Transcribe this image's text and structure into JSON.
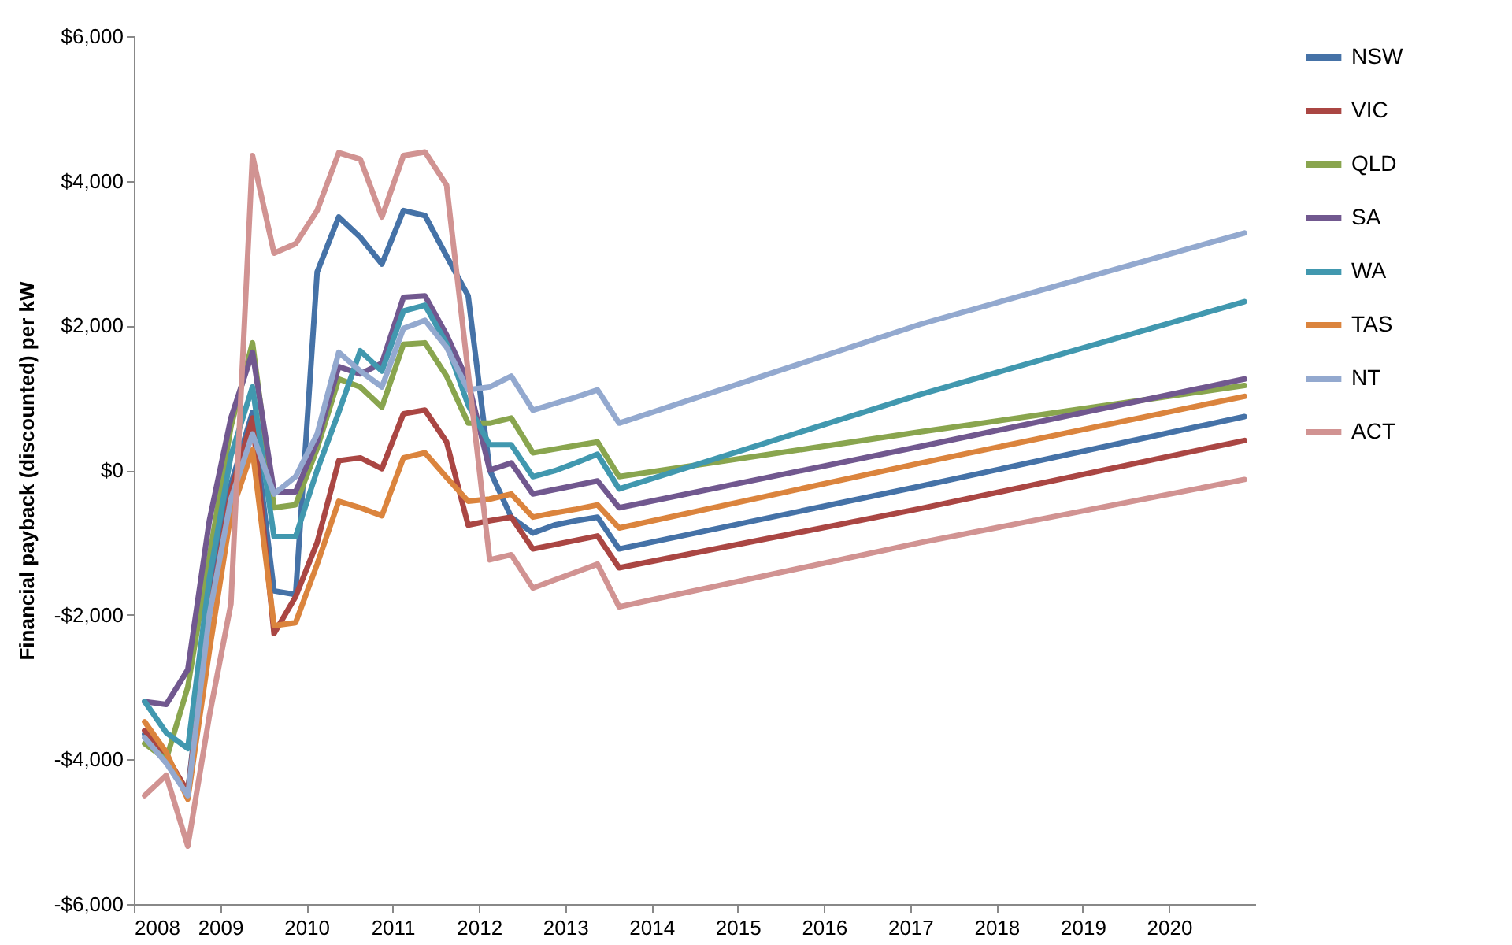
{
  "chart_data": {
    "type": "line",
    "ylabel": "Financial payback (discounted) per kW",
    "x": [
      2008.125,
      2008.375,
      2008.625,
      2008.875,
      2009.125,
      2009.375,
      2009.625,
      2009.875,
      2010.125,
      2010.375,
      2010.625,
      2010.875,
      2011.125,
      2011.375,
      2011.625,
      2011.875,
      2012.125,
      2012.375,
      2012.625,
      2012.875,
      2013.125,
      2013.375,
      2013.625,
      2017.125,
      2020.875
    ],
    "series": [
      {
        "name": "NSW",
        "color": "#4572a7",
        "values": [
          -3650,
          -4000,
          -4450,
          -1800,
          -200,
          800,
          -1670,
          -1720,
          2740,
          3500,
          3220,
          2850,
          3590,
          3520,
          2960,
          2410,
          0,
          -650,
          -870,
          -760,
          -700,
          -650,
          -1090,
          -220,
          740
        ]
      },
      {
        "name": "VIC",
        "color": "#aa4643",
        "values": [
          -3600,
          -3950,
          -4450,
          -2000,
          -300,
          720,
          -2260,
          -1750,
          -1000,
          130,
          170,
          20,
          780,
          830,
          390,
          -760,
          -700,
          -650,
          -1090,
          -1030,
          -970,
          -910,
          -1350,
          -530,
          410
        ]
      },
      {
        "name": "QLD",
        "color": "#89a54e",
        "values": [
          -3780,
          -4000,
          -3000,
          -1200,
          600,
          1760,
          -520,
          -480,
          300,
          1260,
          1150,
          870,
          1740,
          1760,
          1300,
          650,
          650,
          720,
          240,
          290,
          340,
          390,
          -90,
          530,
          1170
        ]
      },
      {
        "name": "SA",
        "color": "#71588f",
        "values": [
          -3200,
          -3240,
          -2760,
          -700,
          720,
          1630,
          -300,
          -300,
          400,
          1430,
          1330,
          1480,
          2390,
          2410,
          1870,
          1220,
          0,
          100,
          -330,
          -270,
          -210,
          -150,
          -520,
          330,
          1260
        ]
      },
      {
        "name": "WA",
        "color": "#4198af",
        "values": [
          -3200,
          -3630,
          -3850,
          -1500,
          200,
          1150,
          -920,
          -920,
          0,
          800,
          1650,
          1370,
          2200,
          2280,
          1750,
          900,
          350,
          350,
          -90,
          -10,
          100,
          220,
          -260,
          1050,
          2330
        ]
      },
      {
        "name": "TAS",
        "color": "#db843d",
        "values": [
          -3480,
          -3900,
          -4550,
          -2500,
          -600,
          280,
          -2150,
          -2110,
          -1300,
          -430,
          -520,
          -630,
          170,
          240,
          -100,
          -430,
          -400,
          -330,
          -650,
          -590,
          -540,
          -480,
          -800,
          100,
          1020
        ]
      },
      {
        "name": "NT",
        "color": "#93a9cf",
        "values": [
          -3700,
          -4050,
          -4500,
          -2000,
          -400,
          500,
          -330,
          -90,
          500,
          1630,
          1370,
          1150,
          1960,
          2070,
          1700,
          1110,
          1150,
          1300,
          830,
          920,
          1010,
          1110,
          650,
          2020,
          3280
        ]
      },
      {
        "name": "ACT",
        "color": "#d19392",
        "values": [
          -4500,
          -4220,
          -5200,
          -3400,
          -1850,
          4350,
          3000,
          3130,
          3590,
          4390,
          4300,
          3500,
          4350,
          4400,
          3940,
          1350,
          -1240,
          -1170,
          -1630,
          -1520,
          -1410,
          -1300,
          -1890,
          -1000,
          -130
        ]
      }
    ],
    "xlim": [
      2008,
      2021
    ],
    "xticks": [
      2008,
      2009,
      2010,
      2011,
      2012,
      2013,
      2014,
      2015,
      2016,
      2017,
      2018,
      2019,
      2020
    ],
    "ylim": [
      -6000,
      6000
    ],
    "yticks": [
      {
        "value": -6000,
        "label": "-$6,000"
      },
      {
        "value": -4000,
        "label": "-$4,000"
      },
      {
        "value": -2000,
        "label": "-$2,000"
      },
      {
        "value": 0,
        "label": "$0"
      },
      {
        "value": 2000,
        "label": "$2,000"
      },
      {
        "value": 4000,
        "label": "$4,000"
      },
      {
        "value": 6000,
        "label": "$6,000"
      }
    ],
    "legend": "right",
    "grid": false,
    "line_style": "solid"
  }
}
